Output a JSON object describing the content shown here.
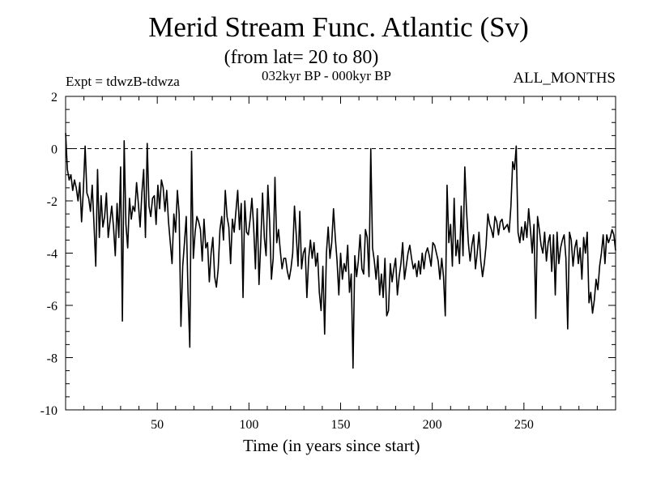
{
  "chart_data": {
    "type": "line",
    "title": "Merid Stream Func. Atlantic (Sv)",
    "subtitle": "(from lat= 20 to 80)",
    "expt_label": "Expt = tdwzB-tdwza",
    "period_label": "032kyr BP - 000kyr BP",
    "months_label": "ALL_MONTHS",
    "xlabel": "Time (in years since start)",
    "ylabel": "",
    "xlim": [
      0,
      300
    ],
    "ylim": [
      -10,
      2
    ],
    "x_ticks": [
      50,
      100,
      150,
      200,
      250
    ],
    "y_ticks": [
      2,
      0,
      -2,
      -4,
      -6,
      -8,
      -10
    ],
    "reference_line": {
      "y": 0,
      "style": "dashed"
    },
    "grid": false,
    "series": [
      {
        "values": [
          0.6,
          -0.8,
          -1.2,
          -1.0,
          -1.6,
          -1.2,
          -1.5,
          -2.0,
          -1.3,
          -2.8,
          -1.6,
          0.1,
          -1.7,
          -1.9,
          -2.4,
          -1.4,
          -2.9,
          -4.5,
          -0.8,
          -3.4,
          -1.8,
          -3.0,
          -2.6,
          -1.7,
          -3.4,
          -2.8,
          -2.2,
          -3.0,
          -4.1,
          -2.1,
          -3.4,
          -0.7,
          -6.6,
          0.3,
          -2.9,
          -3.8,
          -1.9,
          -2.7,
          -2.2,
          -2.4,
          -1.3,
          -2.1,
          -3.0,
          -1.7,
          -0.8,
          -3.4,
          0.2,
          -2.2,
          -2.6,
          -1.9,
          -1.8,
          -2.9,
          -1.4,
          -2.3,
          -1.2,
          -1.5,
          -2.4,
          -1.6,
          -2.8,
          -3.6,
          -4.4,
          -2.5,
          -3.2,
          -1.6,
          -2.5,
          -6.8,
          -4.5,
          -3.6,
          -2.6,
          -5.5,
          -7.6,
          -0.1,
          -4.2,
          -3.2,
          -2.6,
          -2.8,
          -3.1,
          -4.3,
          -2.7,
          -3.8,
          -3.6,
          -5.1,
          -4.0,
          -3.4,
          -4.9,
          -5.3,
          -4.6,
          -3.1,
          -2.6,
          -3.5,
          -1.6,
          -2.6,
          -3.0,
          -4.4,
          -2.7,
          -3.2,
          -2.4,
          -1.6,
          -3.1,
          -2.1,
          -5.7,
          -2.0,
          -3.2,
          -3.3,
          -2.7,
          -1.9,
          -3.0,
          -4.6,
          -2.3,
          -5.2,
          -3.6,
          -1.7,
          -3.4,
          -4.1,
          -1.4,
          -2.8,
          -5.0,
          -4.2,
          -1.1,
          -3.6,
          -3.1,
          -3.9,
          -4.6,
          -4.2,
          -4.2,
          -4.7,
          -5.0,
          -4.6,
          -4.0,
          -2.2,
          -3.3,
          -4.5,
          -2.4,
          -4.6,
          -4.0,
          -3.8,
          -5.7,
          -4.2,
          -3.5,
          -4.2,
          -3.6,
          -4.5,
          -4.0,
          -5.5,
          -6.2,
          -4.5,
          -7.1,
          -4.0,
          -3.0,
          -4.2,
          -3.6,
          -2.3,
          -3.4,
          -4.3,
          -5.6,
          -4.0,
          -5.0,
          -4.4,
          -4.7,
          -3.7,
          -5.5,
          -4.8,
          -8.4,
          -4.1,
          -4.9,
          -4.3,
          -3.3,
          -4.6,
          -4.8,
          -3.1,
          -3.4,
          -4.9,
          0.0,
          -3.8,
          -4.3,
          -5.0,
          -4.1,
          -5.6,
          -4.8,
          -5.7,
          -4.2,
          -6.4,
          -6.2,
          -4.4,
          -5.1,
          -4.6,
          -4.2,
          -5.6,
          -4.9,
          -4.4,
          -3.6,
          -5.0,
          -4.5,
          -4.0,
          -3.7,
          -4.2,
          -4.6,
          -4.4,
          -4.9,
          -4.3,
          -4.8,
          -4.0,
          -4.6,
          -4.0,
          -3.8,
          -4.1,
          -4.5,
          -3.6,
          -3.7,
          -4.0,
          -4.3,
          -5.0,
          -4.2,
          -4.9,
          -6.4,
          -1.4,
          -3.6,
          -2.9,
          -4.5,
          -1.9,
          -4.1,
          -3.5,
          -4.4,
          -2.2,
          -4.1,
          -0.7,
          -2.4,
          -3.6,
          -4.3,
          -3.7,
          -3.3,
          -4.6,
          -4.0,
          -3.2,
          -4.3,
          -4.9,
          -4.4,
          -3.7,
          -2.5,
          -2.9,
          -3.1,
          -3.4,
          -2.6,
          -2.8,
          -3.3,
          -2.8,
          -2.7,
          -3.1,
          -3.0,
          -2.9,
          -3.2,
          -2.2,
          -0.5,
          -0.8,
          0.1,
          -3.2,
          -3.6,
          -3.0,
          -3.5,
          -2.8,
          -3.4,
          -2.3,
          -3.1,
          -4.0,
          -2.9,
          -6.5,
          -2.6,
          -3.1,
          -3.7,
          -4.0,
          -3.2,
          -4.3,
          -3.6,
          -3.3,
          -4.7,
          -3.3,
          -5.6,
          -3.2,
          -4.4,
          -3.8,
          -3.5,
          -3.3,
          -4.2,
          -6.9,
          -3.2,
          -3.5,
          -4.5,
          -3.8,
          -3.5,
          -4.4,
          -3.8,
          -5.0,
          -3.4,
          -4.0,
          -3.2,
          -5.9,
          -5.5,
          -6.3,
          -5.8,
          -5.0,
          -5.4,
          -4.5,
          -4.0,
          -3.3,
          -4.4,
          -3.3,
          -3.6,
          -3.4,
          -3.1,
          -3.3,
          -3.9
        ],
        "color": "#000000"
      }
    ]
  }
}
